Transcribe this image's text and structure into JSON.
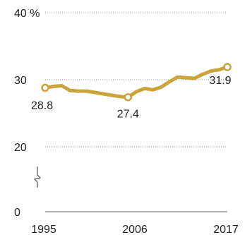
{
  "colors": {
    "series": "#C9A43A"
  },
  "chart_data": {
    "type": "line",
    "title": "",
    "xlabel": "",
    "ylabel": "",
    "y_unit": "%",
    "ylim": [
      0,
      40
    ],
    "axis_break": [
      0,
      20
    ],
    "grid": true,
    "y_ticks": [
      {
        "value": 40,
        "label": "40 %"
      },
      {
        "value": 30,
        "label": "30"
      },
      {
        "value": 20,
        "label": "20"
      },
      {
        "value": 0,
        "label": "0"
      }
    ],
    "x_ticks": [
      {
        "value": 1995,
        "label": "1995"
      },
      {
        "value": 2006,
        "label": "2006"
      },
      {
        "value": 2017,
        "label": "2017"
      }
    ],
    "xlim": [
      1995,
      2017
    ],
    "series": [
      {
        "x": [
          1995,
          1996,
          1997,
          1998,
          1999,
          2000,
          2001,
          2002,
          2003,
          2004,
          2005,
          2006,
          2007,
          2008,
          2009,
          2010,
          2011,
          2012,
          2013,
          2014,
          2015,
          2016,
          2017
        ],
        "y": [
          28.8,
          29.0,
          29.1,
          28.4,
          28.3,
          28.3,
          28.1,
          27.9,
          27.7,
          27.5,
          27.4,
          28.2,
          28.7,
          28.5,
          28.9,
          29.7,
          30.4,
          30.3,
          30.2,
          30.8,
          31.3,
          31.5,
          31.9
        ]
      }
    ],
    "data_labels": [
      {
        "x": 1995,
        "y": 28.8,
        "text": "28.8"
      },
      {
        "x": 2005,
        "y": 27.4,
        "text": "27.4"
      },
      {
        "x": 2017,
        "y": 31.9,
        "text": "31.9"
      }
    ]
  }
}
